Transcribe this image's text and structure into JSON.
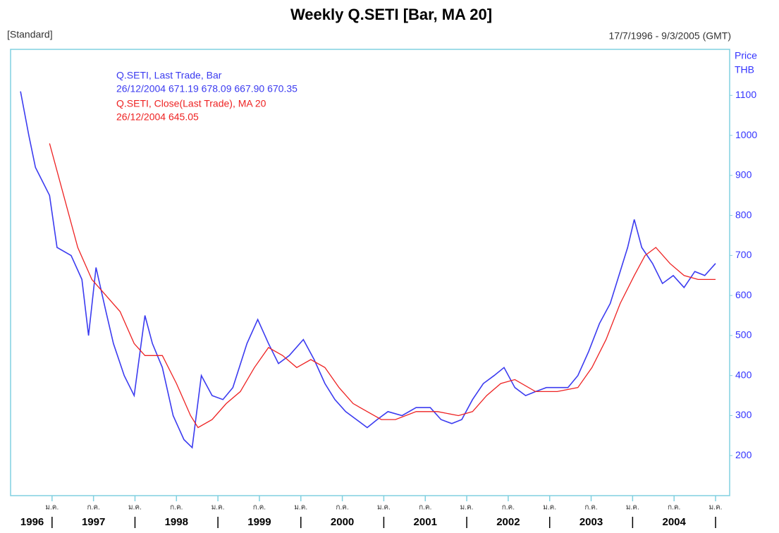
{
  "chart_data": {
    "type": "line",
    "title": "Weekly Q.SETI [Bar, MA 20]",
    "subtitle_left": "[Standard]",
    "subtitle_right": "17/7/1996 - 9/3/2005 (GMT)",
    "y_axis_label": [
      "Price",
      "THB"
    ],
    "xlim": [
      1996.5,
      2005.17
    ],
    "ylim": [
      100,
      1215
    ],
    "yticks": [
      200,
      300,
      400,
      500,
      600,
      700,
      800,
      900,
      1000,
      1100
    ],
    "xticks": [
      {
        "value": 1997.0,
        "label": "ม.ค."
      },
      {
        "value": 1997.5,
        "label": "ก.ค."
      },
      {
        "value": 1998.0,
        "label": "ม.ค."
      },
      {
        "value": 1998.5,
        "label": "ก.ค."
      },
      {
        "value": 1999.0,
        "label": "ม.ค."
      },
      {
        "value": 1999.5,
        "label": "ก.ค."
      },
      {
        "value": 2000.0,
        "label": "ม.ค."
      },
      {
        "value": 2000.5,
        "label": "ก.ค."
      },
      {
        "value": 2001.0,
        "label": "ม.ค."
      },
      {
        "value": 2001.5,
        "label": "ก.ค."
      },
      {
        "value": 2002.0,
        "label": "ม.ค."
      },
      {
        "value": 2002.5,
        "label": "ก.ค."
      },
      {
        "value": 2003.0,
        "label": "ม.ค."
      },
      {
        "value": 2003.5,
        "label": "ก.ค."
      },
      {
        "value": 2004.0,
        "label": "ม.ค."
      },
      {
        "value": 2004.5,
        "label": "ก.ค."
      },
      {
        "value": 2005.0,
        "label": "ม.ค."
      }
    ],
    "year_labels": [
      {
        "value": 1996.76,
        "label": "1996"
      },
      {
        "value": 1997.5,
        "label": "1997"
      },
      {
        "value": 1998.5,
        "label": "1998"
      },
      {
        "value": 1999.5,
        "label": "1999"
      },
      {
        "value": 2000.5,
        "label": "2000"
      },
      {
        "value": 2001.5,
        "label": "2001"
      },
      {
        "value": 2002.5,
        "label": "2002"
      },
      {
        "value": 2003.5,
        "label": "2003"
      },
      {
        "value": 2004.5,
        "label": "2004"
      }
    ],
    "series": [
      {
        "name": "Q.SETI, Last Trade, Bar",
        "last_label": "26/12/2004 671.19 678.09 667.90 670.35",
        "color": "#3b3bf0",
        "x": [
          1996.62,
          1996.72,
          1996.8,
          1996.97,
          1997.06,
          1997.23,
          1997.36,
          1997.44,
          1997.53,
          1997.65,
          1997.74,
          1997.87,
          1997.99,
          1998.12,
          1998.21,
          1998.33,
          1998.46,
          1998.59,
          1998.69,
          1998.8,
          1998.93,
          1999.06,
          1999.18,
          1999.35,
          1999.48,
          1999.61,
          1999.73,
          1999.86,
          2000.03,
          2000.16,
          2000.29,
          2000.41,
          2000.54,
          2000.67,
          2000.8,
          2000.92,
          2001.05,
          2001.22,
          2001.39,
          2001.56,
          2001.69,
          2001.82,
          2001.94,
          2002.07,
          2002.2,
          2002.33,
          2002.45,
          2002.58,
          2002.71,
          2002.83,
          2002.96,
          2003.09,
          2003.22,
          2003.34,
          2003.47,
          2003.6,
          2003.73,
          2003.85,
          2003.94,
          2004.02,
          2004.11,
          2004.24,
          2004.36,
          2004.49,
          2004.62,
          2004.75,
          2004.87,
          2005.0
        ],
        "values": [
          1110,
          1000,
          920,
          850,
          720,
          700,
          640,
          500,
          670,
          560,
          480,
          400,
          350,
          550,
          480,
          420,
          300,
          240,
          220,
          400,
          350,
          340,
          370,
          480,
          540,
          480,
          430,
          450,
          490,
          440,
          380,
          340,
          310,
          290,
          270,
          290,
          310,
          300,
          320,
          320,
          290,
          280,
          290,
          340,
          380,
          400,
          420,
          370,
          350,
          360,
          370,
          370,
          370,
          400,
          460,
          530,
          580,
          660,
          720,
          790,
          720,
          680,
          630,
          650,
          620,
          660,
          650,
          680
        ]
      },
      {
        "name": "Q.SETI, Close(Last Trade), MA 20",
        "last_label": "26/12/2004 645.05",
        "color": "#ee2222",
        "x": [
          1996.97,
          1997.14,
          1997.31,
          1997.48,
          1997.65,
          1997.82,
          1997.99,
          1998.12,
          1998.33,
          1998.5,
          1998.67,
          1998.76,
          1998.93,
          1999.1,
          1999.27,
          1999.44,
          1999.61,
          1999.78,
          1999.95,
          2000.12,
          2000.29,
          2000.46,
          2000.63,
          2000.8,
          2000.97,
          2001.14,
          2001.39,
          2001.65,
          2001.9,
          2002.07,
          2002.24,
          2002.41,
          2002.58,
          2002.83,
          2003.09,
          2003.34,
          2003.51,
          2003.68,
          2003.85,
          2004.02,
          2004.15,
          2004.28,
          2004.45,
          2004.62,
          2004.79,
          2005.0
        ],
        "values": [
          980,
          850,
          720,
          640,
          600,
          560,
          480,
          450,
          450,
          380,
          300,
          270,
          290,
          330,
          360,
          420,
          470,
          450,
          420,
          440,
          420,
          370,
          330,
          310,
          290,
          290,
          310,
          310,
          300,
          310,
          350,
          380,
          390,
          360,
          360,
          370,
          420,
          490,
          580,
          650,
          700,
          720,
          680,
          650,
          640,
          640
        ]
      }
    ]
  }
}
